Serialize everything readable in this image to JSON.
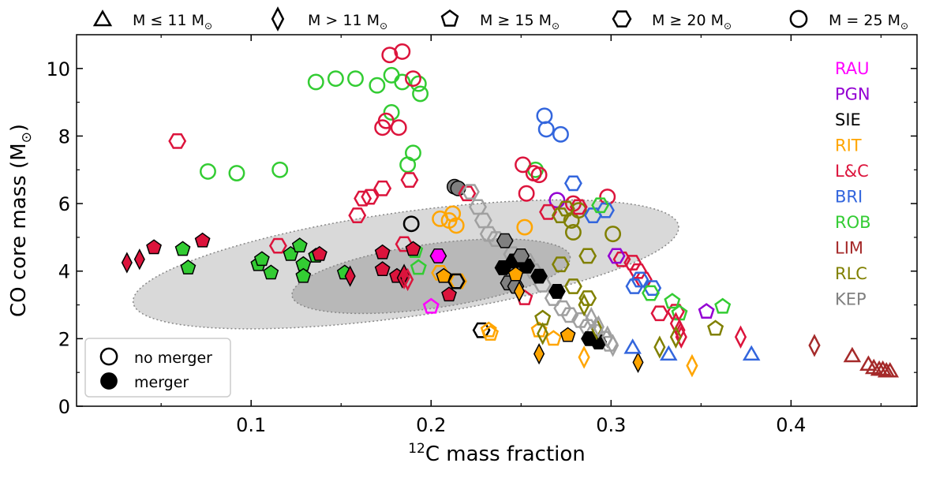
{
  "chart_data": {
    "type": "scatter",
    "xlabel_super": "12",
    "xlabel_rest": "C mass fraction",
    "ylabel_main": "CO core mass (M",
    "ylabel_sub": "⊙",
    "ylabel_end": ")",
    "xlim": [
      0.003,
      0.47
    ],
    "ylim": [
      0,
      11
    ],
    "xticks": [
      0.1,
      0.2,
      0.3,
      0.4
    ],
    "xticks_labels": [
      "0.1",
      "0.2",
      "0.3",
      "0.4"
    ],
    "xminor": [
      0.05,
      0.15,
      0.25,
      0.35,
      0.45
    ],
    "yticks": [
      0,
      2,
      4,
      6,
      8,
      10
    ],
    "yticks_labels": [
      "0",
      "2",
      "4",
      "6",
      "8",
      "10"
    ],
    "yminor": [
      1,
      3,
      5,
      7,
      9
    ],
    "grid": false,
    "mass_legend": [
      {
        "marker": "triangle",
        "text": "M  ≤  11 M",
        "sub": "⊙"
      },
      {
        "marker": "diamond",
        "text": "M > 11 M",
        "sub": "⊙"
      },
      {
        "marker": "pentagon",
        "text": "M  ≥  15 M",
        "sub": "⊙"
      },
      {
        "marker": "hexagon",
        "text": "M  ≥  20 M",
        "sub": "⊙"
      },
      {
        "marker": "circle",
        "text": "M = 25 M",
        "sub": "⊙"
      }
    ],
    "group_legend": [
      {
        "label": "RAU",
        "color": "#ff00ff"
      },
      {
        "label": "PGN",
        "color": "#9400d3"
      },
      {
        "label": "SIE",
        "color": "#000000"
      },
      {
        "label": "RIT",
        "color": "#ffa500"
      },
      {
        "label": "L&C",
        "color": "#dc143c"
      },
      {
        "label": "BRI",
        "color": "#3366dd"
      },
      {
        "label": "ROB",
        "color": "#33cc33"
      },
      {
        "label": "LIM",
        "color": "#a52a2a"
      },
      {
        "label": "RLC",
        "color": "#808000"
      },
      {
        "label": "KEP",
        "color": "#808080"
      }
    ],
    "merger_legend": {
      "open": "no merger",
      "filled": "merger",
      "placement": "lower-left"
    },
    "ellipses": [
      {
        "cx": 0.186,
        "cy": 4.2,
        "rx": 0.153,
        "ry": 1.55,
        "angle_deg": -8,
        "fill": "#d9d9d9"
      },
      {
        "cx": 0.2,
        "cy": 3.85,
        "rx": 0.078,
        "ry": 0.95,
        "angle_deg": -8,
        "fill": "#b8b8b8"
      }
    ],
    "series": [
      {
        "group": "ROB",
        "color": "#33cc33",
        "marker": "circle",
        "filled": false,
        "points": [
          [
            0.076,
            6.95
          ],
          [
            0.092,
            6.9
          ],
          [
            0.116,
            7.0
          ],
          [
            0.136,
            9.6
          ],
          [
            0.147,
            9.7
          ],
          [
            0.158,
            9.7
          ],
          [
            0.17,
            9.5
          ],
          [
            0.178,
            9.8
          ],
          [
            0.184,
            9.6
          ],
          [
            0.193,
            9.55
          ],
          [
            0.194,
            9.25
          ],
          [
            0.178,
            8.7
          ],
          [
            0.19,
            7.5
          ],
          [
            0.187,
            7.15
          ],
          [
            0.258,
            7.0
          ]
        ]
      },
      {
        "group": "L&C",
        "color": "#dc143c",
        "marker": "circle",
        "filled": false,
        "points": [
          [
            0.177,
            10.4
          ],
          [
            0.184,
            10.5
          ],
          [
            0.19,
            9.7
          ],
          [
            0.173,
            8.25
          ],
          [
            0.175,
            8.45
          ],
          [
            0.182,
            8.25
          ],
          [
            0.251,
            7.15
          ],
          [
            0.257,
            6.9
          ],
          [
            0.26,
            6.85
          ],
          [
            0.253,
            6.3
          ],
          [
            0.279,
            6.0
          ],
          [
            0.298,
            6.2
          ]
        ]
      },
      {
        "group": "BRI",
        "color": "#3366dd",
        "marker": "circle",
        "filled": false,
        "points": [
          [
            0.263,
            8.6
          ],
          [
            0.264,
            8.2
          ],
          [
            0.272,
            8.05
          ]
        ]
      },
      {
        "group": "PGN",
        "color": "#9400d3",
        "marker": "circle",
        "filled": false,
        "points": [
          [
            0.27,
            6.1
          ]
        ]
      },
      {
        "group": "RIT",
        "color": "#ffa500",
        "marker": "circle",
        "filled": false,
        "points": [
          [
            0.205,
            5.55
          ],
          [
            0.21,
            5.5
          ],
          [
            0.212,
            5.7
          ],
          [
            0.214,
            5.35
          ],
          [
            0.252,
            5.3
          ]
        ]
      },
      {
        "group": "RLC",
        "color": "#808000",
        "marker": "circle",
        "filled": false,
        "points": [
          [
            0.278,
            5.5
          ],
          [
            0.282,
            5.8
          ],
          [
            0.279,
            5.15
          ],
          [
            0.301,
            5.1
          ]
        ]
      },
      {
        "group": "SIE",
        "color": "#000000",
        "marker": "circle",
        "filled": false,
        "points": [
          [
            0.189,
            5.4
          ]
        ]
      },
      {
        "group": "KEP",
        "color": "#808080",
        "marker": "circle",
        "filled": true,
        "points": [
          [
            0.213,
            6.5
          ],
          [
            0.215,
            6.45
          ]
        ]
      },
      {
        "group": "L&C",
        "color": "#dc143c",
        "marker": "hexagon",
        "filled": false,
        "points": [
          [
            0.059,
            7.85
          ],
          [
            0.173,
            6.45
          ],
          [
            0.188,
            6.7
          ],
          [
            0.162,
            6.15
          ],
          [
            0.166,
            6.2
          ],
          [
            0.159,
            5.65
          ],
          [
            0.22,
            6.3
          ],
          [
            0.265,
            5.75
          ],
          [
            0.282,
            5.9
          ],
          [
            0.185,
            4.8
          ],
          [
            0.115,
            4.75
          ],
          [
            0.306,
            4.35
          ],
          [
            0.312,
            4.25
          ],
          [
            0.315,
            4.0
          ],
          [
            0.318,
            3.75
          ],
          [
            0.327,
            2.75
          ],
          [
            0.336,
            2.8
          ]
        ]
      },
      {
        "group": "BRI",
        "color": "#3366dd",
        "marker": "hexagon",
        "filled": false,
        "points": [
          [
            0.279,
            6.6
          ],
          [
            0.29,
            5.65
          ],
          [
            0.297,
            5.8
          ],
          [
            0.313,
            3.55
          ],
          [
            0.316,
            3.75
          ],
          [
            0.323,
            3.5
          ]
        ]
      },
      {
        "group": "RLC",
        "color": "#808000",
        "marker": "hexagon",
        "filled": false,
        "points": [
          [
            0.272,
            5.65
          ],
          [
            0.275,
            5.85
          ],
          [
            0.287,
            4.45
          ],
          [
            0.272,
            4.2
          ],
          [
            0.279,
            3.55
          ],
          [
            0.287,
            3.2
          ]
        ]
      },
      {
        "group": "ROB",
        "color": "#33cc33",
        "marker": "hexagon",
        "filled": false,
        "points": [
          [
            0.294,
            5.95
          ],
          [
            0.322,
            3.35
          ]
        ]
      },
      {
        "group": "PGN",
        "color": "#9400d3",
        "marker": "hexagon",
        "filled": false,
        "points": [
          [
            0.303,
            4.45
          ]
        ]
      },
      {
        "group": "RAU",
        "color": "#ff00ff",
        "marker": "hexagon",
        "filled": true,
        "points": [
          [
            0.204,
            4.45
          ]
        ]
      },
      {
        "group": "KEP",
        "color": "#a0a0a0",
        "marker": "hexagon",
        "filled": false,
        "points": [
          [
            0.222,
            6.35
          ],
          [
            0.226,
            5.9
          ],
          [
            0.229,
            5.5
          ],
          [
            0.232,
            5.1
          ],
          [
            0.236,
            4.95
          ],
          [
            0.245,
            4.5
          ],
          [
            0.253,
            4.3
          ],
          [
            0.257,
            4.0
          ],
          [
            0.262,
            3.6
          ],
          [
            0.268,
            3.2
          ],
          [
            0.273,
            2.9
          ],
          [
            0.277,
            2.7
          ],
          [
            0.283,
            2.55
          ],
          [
            0.287,
            2.35
          ],
          [
            0.291,
            2.2
          ],
          [
            0.296,
            2.0
          ],
          [
            0.299,
            1.85
          ]
        ]
      },
      {
        "group": "SIE",
        "color": "#000000",
        "marker": "hexagon",
        "filled": true,
        "points": [
          [
            0.24,
            4.1
          ],
          [
            0.246,
            4.3
          ],
          [
            0.253,
            4.15
          ],
          [
            0.26,
            3.85
          ],
          [
            0.27,
            3.4
          ],
          [
            0.288,
            2.0
          ],
          [
            0.293,
            1.9
          ]
        ]
      },
      {
        "group": "KEP",
        "color": "#808080",
        "marker": "hexagon",
        "filled": true,
        "points": [
          [
            0.243,
            3.65
          ],
          [
            0.247,
            3.55
          ],
          [
            0.241,
            4.9
          ],
          [
            0.25,
            4.45
          ]
        ]
      },
      {
        "group": "RIT",
        "color": "#ffa500",
        "marker": "hexagon",
        "filled": false,
        "points": [
          [
            0.205,
            3.95
          ],
          [
            0.215,
            3.7
          ]
        ]
      },
      {
        "group": "SIE",
        "color": "#000000",
        "marker": "hexagon",
        "filled": false,
        "points": [
          [
            0.214,
            3.7
          ],
          [
            0.228,
            2.25
          ]
        ]
      },
      {
        "group": "RIT",
        "color": "#ffa500",
        "marker": "pentagon",
        "filled": false,
        "points": [
          [
            0.232,
            2.25
          ],
          [
            0.233,
            2.15
          ],
          [
            0.26,
            2.25
          ],
          [
            0.268,
            2.0
          ]
        ]
      },
      {
        "group": "ROB",
        "color": "#33cc33",
        "marker": "pentagon",
        "filled": false,
        "points": [
          [
            0.191,
            4.6
          ],
          [
            0.193,
            4.1
          ],
          [
            0.334,
            3.1
          ],
          [
            0.338,
            2.75
          ],
          [
            0.362,
            2.95
          ]
        ]
      },
      {
        "group": "RAU",
        "color": "#ff00ff",
        "marker": "pentagon",
        "filled": false,
        "points": [
          [
            0.2,
            2.95
          ]
        ]
      },
      {
        "group": "RLC",
        "color": "#808000",
        "marker": "pentagon",
        "filled": false,
        "points": [
          [
            0.262,
            2.6
          ],
          [
            0.358,
            2.3
          ]
        ]
      },
      {
        "group": "PGN",
        "color": "#9400d3",
        "marker": "pentagon",
        "filled": false,
        "points": [
          [
            0.353,
            2.8
          ]
        ]
      },
      {
        "group": "L&C",
        "color": "#dc143c",
        "marker": "pentagon",
        "filled": false,
        "points": [
          [
            0.252,
            3.2
          ]
        ]
      },
      {
        "group": "ROB",
        "color": "#33cc33",
        "marker": "pentagon",
        "filled": true,
        "points": [
          [
            0.062,
            4.65
          ],
          [
            0.065,
            4.1
          ],
          [
            0.104,
            4.2
          ],
          [
            0.106,
            4.35
          ],
          [
            0.111,
            3.95
          ],
          [
            0.122,
            4.5
          ],
          [
            0.127,
            4.75
          ],
          [
            0.129,
            4.2
          ],
          [
            0.129,
            3.85
          ],
          [
            0.136,
            4.45
          ],
          [
            0.152,
            3.95
          ]
        ]
      },
      {
        "group": "L&C",
        "color": "#dc143c",
        "marker": "pentagon",
        "filled": true,
        "points": [
          [
            0.046,
            4.7
          ],
          [
            0.073,
            4.9
          ],
          [
            0.138,
            4.5
          ],
          [
            0.173,
            4.55
          ],
          [
            0.173,
            4.05
          ],
          [
            0.181,
            3.85
          ],
          [
            0.19,
            4.65
          ],
          [
            0.21,
            3.3
          ]
        ]
      },
      {
        "group": "RIT",
        "color": "#ffa500",
        "marker": "pentagon",
        "filled": true,
        "points": [
          [
            0.207,
            3.85
          ],
          [
            0.247,
            3.9
          ],
          [
            0.276,
            2.1
          ]
        ]
      },
      {
        "group": "L&C",
        "color": "#dc143c",
        "marker": "diamond",
        "filled": true,
        "points": [
          [
            0.031,
            4.25
          ],
          [
            0.038,
            4.35
          ],
          [
            0.155,
            3.85
          ],
          [
            0.184,
            3.8
          ],
          [
            0.185,
            3.9
          ]
        ]
      },
      {
        "group": "RIT",
        "color": "#ffa500",
        "marker": "diamond",
        "filled": true,
        "points": [
          [
            0.26,
            1.55
          ],
          [
            0.315,
            1.3
          ],
          [
            0.249,
            3.4
          ]
        ]
      },
      {
        "group": "RIT",
        "color": "#ffa500",
        "marker": "diamond",
        "filled": false,
        "points": [
          [
            0.285,
            1.45
          ],
          [
            0.345,
            1.2
          ]
        ]
      },
      {
        "group": "L&C",
        "color": "#dc143c",
        "marker": "diamond",
        "filled": false,
        "points": [
          [
            0.185,
            3.8
          ],
          [
            0.187,
            3.75
          ],
          [
            0.336,
            2.45
          ],
          [
            0.338,
            2.25
          ],
          [
            0.339,
            2.05
          ],
          [
            0.372,
            2.05
          ]
        ]
      },
      {
        "group": "LIM",
        "color": "#a52a2a",
        "marker": "diamond",
        "filled": false,
        "points": [
          [
            0.413,
            1.8
          ]
        ]
      },
      {
        "group": "RLC",
        "color": "#808000",
        "marker": "diamond",
        "filled": false,
        "points": [
          [
            0.262,
            2.15
          ],
          [
            0.285,
            3.0
          ],
          [
            0.292,
            2.3
          ],
          [
            0.327,
            1.75
          ],
          [
            0.336,
            2.05
          ]
        ]
      },
      {
        "group": "KEP",
        "color": "#a0a0a0",
        "marker": "diamond",
        "filled": false,
        "points": [
          [
            0.289,
            2.6
          ],
          [
            0.293,
            2.35
          ],
          [
            0.298,
            2.05
          ],
          [
            0.301,
            1.8
          ]
        ]
      },
      {
        "group": "BRI",
        "color": "#3366dd",
        "marker": "triangle",
        "filled": false,
        "points": [
          [
            0.312,
            1.75
          ],
          [
            0.332,
            1.55
          ],
          [
            0.378,
            1.55
          ]
        ]
      },
      {
        "group": "LIM",
        "color": "#a52a2a",
        "marker": "triangle",
        "filled": false,
        "points": [
          [
            0.434,
            1.5
          ],
          [
            0.443,
            1.25
          ],
          [
            0.446,
            1.15
          ],
          [
            0.449,
            1.1
          ],
          [
            0.451,
            1.1
          ],
          [
            0.453,
            1.05
          ],
          [
            0.455,
            1.05
          ]
        ]
      }
    ]
  }
}
